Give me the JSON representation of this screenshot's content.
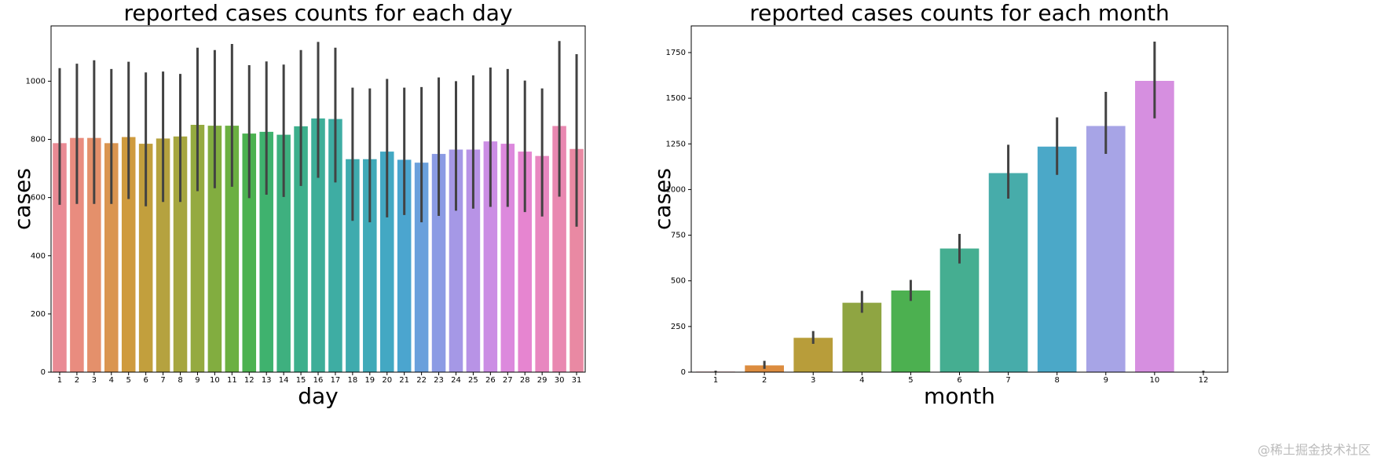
{
  "chart_data": [
    {
      "type": "bar",
      "title": "reported cases counts for each day",
      "xlabel": "day",
      "ylabel": "cases",
      "categories": [
        "1",
        "2",
        "3",
        "4",
        "5",
        "6",
        "7",
        "8",
        "9",
        "10",
        "11",
        "12",
        "13",
        "14",
        "15",
        "16",
        "17",
        "18",
        "19",
        "20",
        "21",
        "22",
        "23",
        "24",
        "25",
        "26",
        "27",
        "28",
        "29",
        "30",
        "31"
      ],
      "values": [
        787,
        805,
        805,
        787,
        808,
        785,
        803,
        810,
        850,
        847,
        847,
        820,
        826,
        816,
        845,
        872,
        870,
        732,
        732,
        758,
        730,
        720,
        750,
        765,
        765,
        793,
        785,
        758,
        743,
        846,
        767
      ],
      "ci_low": [
        575,
        578,
        578,
        578,
        595,
        570,
        585,
        585,
        622,
        632,
        637,
        598,
        610,
        602,
        640,
        668,
        652,
        520,
        515,
        532,
        540,
        515,
        537,
        555,
        562,
        568,
        568,
        550,
        535,
        603,
        500
      ],
      "ci_high": [
        1045,
        1060,
        1072,
        1042,
        1067,
        1030,
        1033,
        1025,
        1115,
        1107,
        1128,
        1055,
        1068,
        1057,
        1107,
        1135,
        1115,
        978,
        975,
        1008,
        978,
        980,
        1013,
        1000,
        1020,
        1047,
        1042,
        1002,
        975,
        1138,
        1093
      ],
      "colors": [
        "#e98a94",
        "#e98c7f",
        "#e4906b",
        "#da9550",
        "#cf9b3e",
        "#c29f3d",
        "#b5a23f",
        "#a6a63f",
        "#95aa40",
        "#82ad40",
        "#6bb042",
        "#4cb250",
        "#3fb26e",
        "#3eb07f",
        "#3daf8c",
        "#3dae98",
        "#3eada3",
        "#3fabae",
        "#40aab8",
        "#43a8c3",
        "#4ba5cf",
        "#6aa0dc",
        "#8b9be4",
        "#a598e6",
        "#b893e6",
        "#cb8de4",
        "#dc89dd",
        "#e685d0",
        "#e887c0",
        "#e988b1",
        "#e989a3"
      ],
      "ylim": [
        0,
        1190
      ],
      "yticks": [
        0,
        200,
        400,
        600,
        800,
        1000
      ]
    },
    {
      "type": "bar",
      "title": "reported cases counts for each month",
      "xlabel": "month",
      "ylabel": "cases",
      "categories": [
        "1",
        "2",
        "3",
        "4",
        "5",
        "6",
        "7",
        "8",
        "9",
        "10",
        "12"
      ],
      "values": [
        3,
        37,
        188,
        380,
        447,
        677,
        1090,
        1235,
        1348,
        1595,
        1
      ],
      "ci_low": [
        0,
        18,
        155,
        325,
        390,
        595,
        950,
        1080,
        1195,
        1390,
        0
      ],
      "ci_high": [
        8,
        62,
        225,
        445,
        505,
        757,
        1245,
        1395,
        1535,
        1810,
        8
      ],
      "colors": [
        "#e98a94",
        "#dc8c3f",
        "#b89d3a",
        "#8fa542",
        "#4cb050",
        "#45ae91",
        "#47acaa",
        "#4ba8c8",
        "#a7a4e6",
        "#d68fe0",
        "#e989a3"
      ],
      "ylim": [
        0,
        1896
      ],
      "yticks": [
        0,
        250,
        500,
        750,
        1000,
        1250,
        1500,
        1750
      ]
    }
  ],
  "watermark": "@稀土掘金技术社区"
}
